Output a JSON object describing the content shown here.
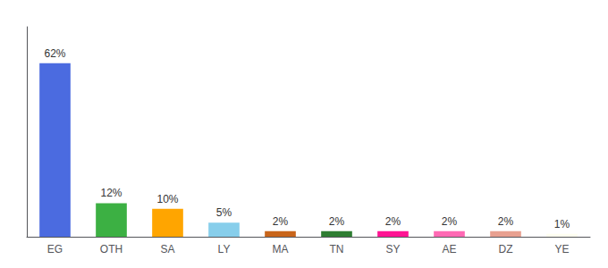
{
  "chart_data": {
    "type": "bar",
    "categories": [
      "EG",
      "OTH",
      "SA",
      "LY",
      "MA",
      "TN",
      "SY",
      "AE",
      "DZ",
      "YE"
    ],
    "values": [
      62,
      12,
      10,
      5,
      2,
      2,
      2,
      2,
      2,
      1
    ],
    "value_labels": [
      "62%",
      "12%",
      "10%",
      "5%",
      "2%",
      "2%",
      "2%",
      "2%",
      "2%",
      "1%"
    ],
    "colors": [
      "#4B6BE0",
      "#3CB043",
      "#FFA500",
      "#87CEEB",
      "#C8651B",
      "#2E7D32",
      "#FF1493",
      "#FF69B4",
      "#E8A090",
      "#FFFFF0"
    ],
    "ylim": [
      0,
      75
    ],
    "data_labels": true,
    "tick_labels": "x",
    "grid": false
  }
}
